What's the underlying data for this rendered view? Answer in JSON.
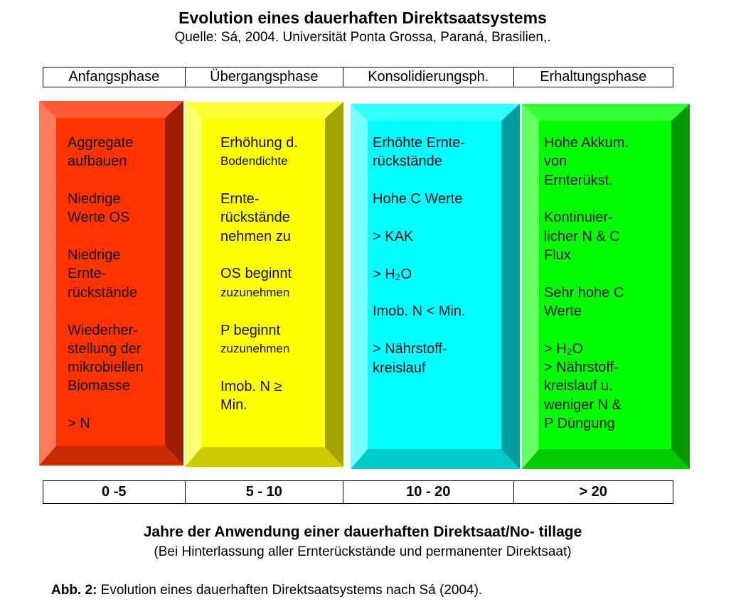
{
  "header": {
    "title": "Evolution eines dauerhaften Direktsaatsystems",
    "subtitle": "Quelle: Sá, 2004. Universität Ponta Grossa, Paraná, Brasilien,."
  },
  "phases": [
    "Anfangsphase",
    "Übergangsphase",
    "Konsolidierungsph.",
    "Erhaltungsphase"
  ],
  "boxes": [
    {
      "items": [
        [
          "Aggregate",
          "aufbauen"
        ],
        [
          "Niedrige",
          "Werte OS"
        ],
        [
          "Niedrige",
          "Ernte-",
          "rückstände"
        ],
        [
          "Wiederher-",
          "stellung der",
          "mikrobiellen",
          "Biomasse"
        ],
        [
          "> N"
        ]
      ]
    },
    {
      "items": [
        [
          "Erhöhung d.",
          "Bodendichte"
        ],
        [
          "Ernte-",
          "rückstände",
          "nehmen zu"
        ],
        [
          "OS beginnt",
          "zuzunehmen"
        ],
        [
          "P beginnt",
          "zuzunehmen"
        ],
        [
          "Imob. N ≥",
          "Min."
        ]
      ]
    },
    {
      "items": [
        [
          "Erhöhte Ernte-",
          "rückstände"
        ],
        [
          "Hohe C Werte"
        ],
        [
          "> KAK"
        ],
        [
          "> H₂O"
        ],
        [
          "Imob. N < Min."
        ],
        [
          "> Nährstoff-",
          "kreislauf"
        ]
      ]
    },
    {
      "items": [
        [
          "Hohe Akkum.",
          "von",
          "Ernterükst."
        ],
        [
          "Kontinuier-",
          "licher N & C",
          "Flux"
        ],
        [
          "Sehr hohe C",
          "Werte"
        ],
        [
          "> H₂O",
          "> Nährstoff-",
          "kreislauf u.",
          "weniger N &",
          "P Düngung"
        ]
      ]
    }
  ],
  "years": [
    "0 -5",
    "5 - 10",
    "10 - 20",
    "> 20"
  ],
  "footer": {
    "title": "Jahre der Anwendung einer dauerhaften Direktsaat/No- tillage",
    "subtitle": "(Bei Hinterlassung aller Ernterückstände und permanenter Direktsaat)"
  },
  "caption": {
    "label": "Abb. 2:",
    "text": "Evolution eines dauerhaften Direktsaatsystems nach Sá (2004)."
  }
}
